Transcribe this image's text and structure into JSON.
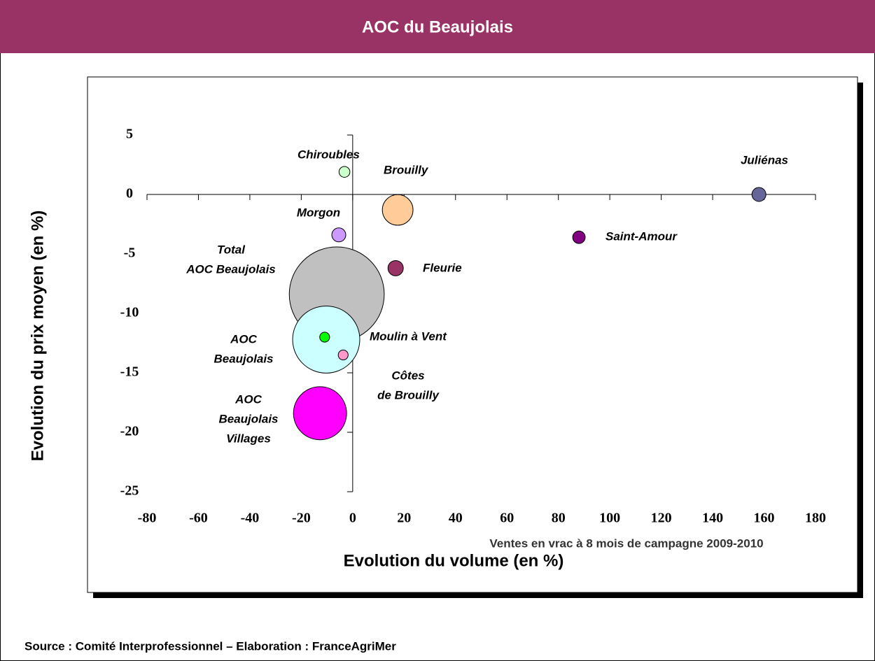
{
  "chart_data": {
    "type": "bubble",
    "title": "AOC du Beaujolais",
    "x_label": "Evolution du volume (en %)",
    "y_label": "Evolution du prix moyen (en %)",
    "annotation": "Ventes en vrac à 8 mois de campagne 2009-2010",
    "source": "Source : Comité Interprofessionnel – Elaboration : FranceAgriMer",
    "xlim": [
      -80,
      180
    ],
    "xticks": [
      -80,
      -60,
      -40,
      -20,
      0,
      20,
      40,
      60,
      80,
      100,
      120,
      140,
      160,
      180
    ],
    "ylim": [
      -25,
      5
    ],
    "yticks": [
      -25,
      -20,
      -15,
      -10,
      -5,
      0,
      5
    ],
    "points": [
      {
        "name": [
          "Total",
          "AOC Beaujolais"
        ],
        "color": "#c0c0c0",
        "x": -6.2,
        "y": -8.4,
        "size": 46
      },
      {
        "name": [
          "AOC",
          "Beaujolais"
        ],
        "color": "#ccffff",
        "x": -10.3,
        "y": -12.2,
        "size": 23
      },
      {
        "name": [
          "AOC",
          "Beaujolais",
          "Villages"
        ],
        "color": "#ff00ff",
        "x": -12.7,
        "y": -18.4,
        "size": 14.4
      },
      {
        "name": [
          "Chiroubles"
        ],
        "color": "#ccffcc",
        "x": -3.2,
        "y": 1.9,
        "size": 0.6
      },
      {
        "name": [
          "Brouilly"
        ],
        "color": "#ffcc99",
        "x": 17.5,
        "y": -1.3,
        "size": 4.8
      },
      {
        "name": [
          "Juliénas"
        ],
        "color": "#666699",
        "x": 158,
        "y": 0,
        "size": 1
      },
      {
        "name": [
          "Morgon"
        ],
        "color": "#cc99ff",
        "x": -5.4,
        "y": -3.4,
        "size": 1
      },
      {
        "name": [
          "Saint-Amour"
        ],
        "color": "#800080",
        "x": 88,
        "y": -3.6,
        "size": 0.8
      },
      {
        "name": [
          "Fleurie"
        ],
        "color": "#993366",
        "x": 16.7,
        "y": -6.2,
        "size": 1.2
      },
      {
        "name": [
          "Moulin à Vent"
        ],
        "color": "#00ff00",
        "x": -10.9,
        "y": -12,
        "size": 0.5
      },
      {
        "name": [
          "Côtes",
          "de Brouilly"
        ],
        "color": "#ff99cc",
        "x": -3.7,
        "y": -13.5,
        "size": 0.5
      }
    ]
  }
}
